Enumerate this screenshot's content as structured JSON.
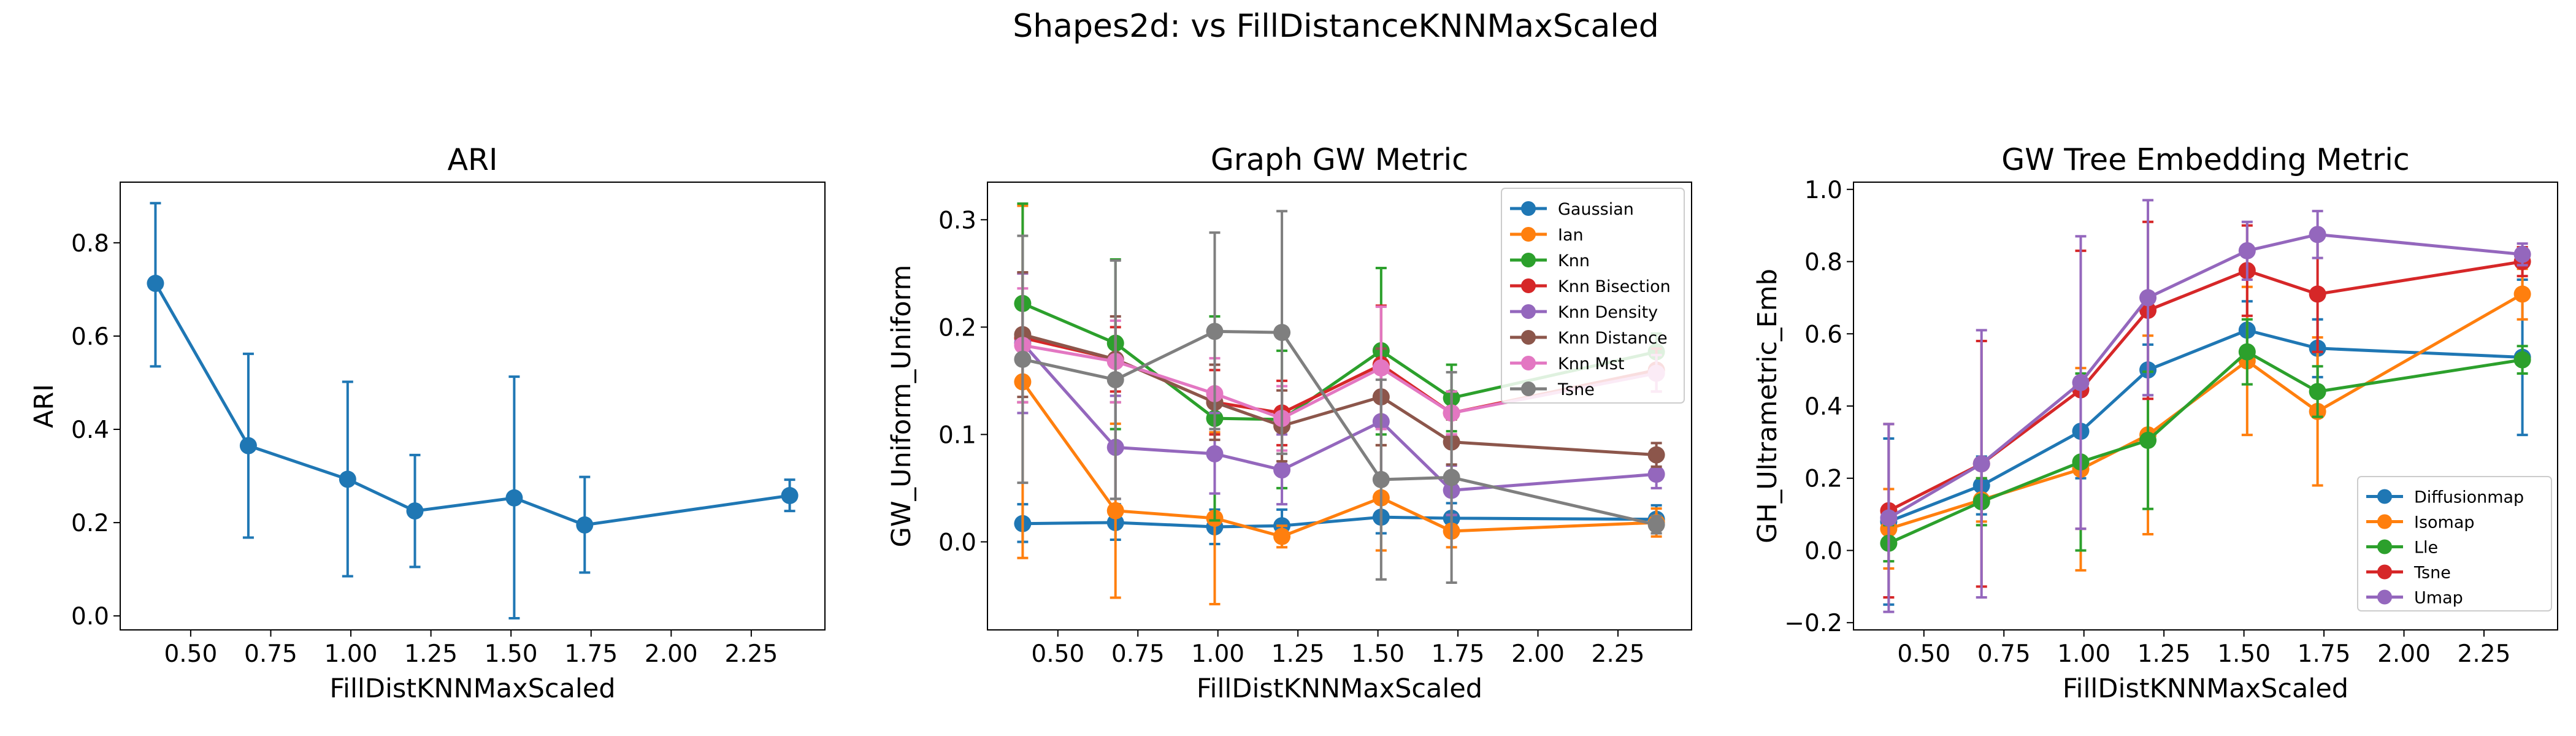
{
  "figure_title": "Shapes2d: vs FillDistanceKNNMaxScaled",
  "chart_data": [
    {
      "type": "line",
      "title": "ARI",
      "xlabel": "FillDistKNNMaxScaled",
      "ylabel": "ARI",
      "xlim": [
        0.28,
        2.48
      ],
      "ylim": [
        -0.03,
        0.93
      ],
      "xticks": [
        0.5,
        0.75,
        1.0,
        1.25,
        1.5,
        1.75,
        2.0,
        2.25
      ],
      "xtick_labels": [
        "0.50",
        "0.75",
        "1.00",
        "1.25",
        "1.50",
        "1.75",
        "2.00",
        "2.25"
      ],
      "yticks": [
        0.0,
        0.2,
        0.4,
        0.6,
        0.8
      ],
      "ytick_labels": [
        "0.0",
        "0.2",
        "0.4",
        "0.6",
        "0.8"
      ],
      "x": [
        0.39,
        0.68,
        0.99,
        1.2,
        1.51,
        1.73,
        2.37
      ],
      "legend": false,
      "series": [
        {
          "name": "",
          "color": "#1f77b4",
          "values": [
            0.713,
            0.365,
            0.293,
            0.225,
            0.253,
            0.195,
            0.258
          ],
          "err_low": [
            0.535,
            0.168,
            0.085,
            0.105,
            -0.005,
            0.093,
            0.225
          ],
          "err_high": [
            0.885,
            0.562,
            0.502,
            0.345,
            0.513,
            0.298,
            0.292
          ]
        }
      ]
    },
    {
      "type": "line",
      "title": "Graph GW Metric",
      "xlabel": "FillDistKNNMaxScaled",
      "ylabel": "GW_Uniform_Uniform",
      "xlim": [
        0.28,
        2.48
      ],
      "ylim": [
        -0.082,
        0.335
      ],
      "xticks": [
        0.5,
        0.75,
        1.0,
        1.25,
        1.5,
        1.75,
        2.0,
        2.25
      ],
      "xtick_labels": [
        "0.50",
        "0.75",
        "1.00",
        "1.25",
        "1.50",
        "1.75",
        "2.00",
        "2.25"
      ],
      "yticks": [
        0.0,
        0.1,
        0.2,
        0.3
      ],
      "ytick_labels": [
        "0.0",
        "0.1",
        "0.2",
        "0.3"
      ],
      "x": [
        0.39,
        0.68,
        0.99,
        1.2,
        1.51,
        1.73,
        2.37
      ],
      "legend": "top-right",
      "series": [
        {
          "name": "Gaussian",
          "color": "#1f77b4",
          "values": [
            0.017,
            0.018,
            0.014,
            0.015,
            0.023,
            0.022,
            0.021
          ],
          "err_low": [
            0.0,
            0.002,
            -0.002,
            0.0,
            0.008,
            0.008,
            0.008
          ],
          "err_high": [
            0.035,
            0.035,
            0.03,
            0.03,
            0.038,
            0.036,
            0.034
          ]
        },
        {
          "name": "Ian",
          "color": "#ff7f0e",
          "values": [
            0.149,
            0.029,
            0.022,
            0.005,
            0.041,
            0.01,
            0.018
          ],
          "err_low": [
            -0.015,
            -0.052,
            -0.058,
            -0.005,
            -0.008,
            -0.005,
            0.005
          ],
          "err_high": [
            0.313,
            0.11,
            0.102,
            0.015,
            0.09,
            0.025,
            0.031
          ]
        },
        {
          "name": "Knn",
          "color": "#2ca02c",
          "values": [
            0.222,
            0.185,
            0.115,
            0.114,
            0.178,
            0.134,
            0.177
          ],
          "err_low": [
            0.13,
            0.105,
            0.02,
            0.05,
            0.1,
            0.103,
            0.16
          ],
          "err_high": [
            0.315,
            0.263,
            0.21,
            0.178,
            0.255,
            0.165,
            0.194
          ]
        },
        {
          "name": "Knn Bisection",
          "color": "#d62728",
          "values": [
            0.19,
            0.17,
            0.13,
            0.12,
            0.165,
            0.12,
            0.16
          ],
          "err_low": [
            0.13,
            0.14,
            0.1,
            0.09,
            0.11,
            0.1,
            0.14
          ],
          "err_high": [
            0.25,
            0.2,
            0.16,
            0.15,
            0.22,
            0.14,
            0.18
          ]
        },
        {
          "name": "Knn Density",
          "color": "#9467bd",
          "values": [
            0.185,
            0.088,
            0.082,
            0.067,
            0.112,
            0.048,
            0.063
          ],
          "err_low": [
            0.12,
            0.04,
            0.045,
            0.035,
            0.06,
            0.025,
            0.05
          ],
          "err_high": [
            0.25,
            0.136,
            0.12,
            0.1,
            0.164,
            0.071,
            0.076
          ]
        },
        {
          "name": "Knn Distance",
          "color": "#8c564b",
          "values": [
            0.193,
            0.17,
            0.13,
            0.108,
            0.135,
            0.093,
            0.081
          ],
          "err_low": [
            0.135,
            0.13,
            0.095,
            0.075,
            0.09,
            0.072,
            0.07
          ],
          "err_high": [
            0.251,
            0.21,
            0.165,
            0.141,
            0.18,
            0.114,
            0.092
          ]
        },
        {
          "name": "Knn Mst",
          "color": "#e377c2",
          "values": [
            0.183,
            0.168,
            0.138,
            0.115,
            0.162,
            0.12,
            0.157
          ],
          "err_low": [
            0.13,
            0.13,
            0.105,
            0.085,
            0.105,
            0.1,
            0.14
          ],
          "err_high": [
            0.236,
            0.206,
            0.171,
            0.145,
            0.219,
            0.14,
            0.174
          ]
        },
        {
          "name": "Tsne",
          "color": "#7f7f7f",
          "values": [
            0.17,
            0.151,
            0.196,
            0.195,
            0.058,
            0.06,
            0.016
          ],
          "err_low": [
            0.055,
            0.04,
            0.105,
            0.082,
            -0.035,
            -0.038,
            0.008
          ],
          "err_high": [
            0.285,
            0.262,
            0.288,
            0.308,
            0.151,
            0.158,
            0.024
          ]
        }
      ]
    },
    {
      "type": "line",
      "title": "GW Tree Embedding Metric",
      "xlabel": "FillDistKNNMaxScaled",
      "ylabel": "GH_Ultrametric_Emb",
      "xlim": [
        0.28,
        2.48
      ],
      "ylim": [
        -0.22,
        1.02
      ],
      "xticks": [
        0.5,
        0.75,
        1.0,
        1.25,
        1.5,
        1.75,
        2.0,
        2.25
      ],
      "xtick_labels": [
        "0.50",
        "0.75",
        "1.00",
        "1.25",
        "1.50",
        "1.75",
        "2.00",
        "2.25"
      ],
      "yticks": [
        -0.2,
        0.0,
        0.2,
        0.4,
        0.6,
        0.8,
        1.0
      ],
      "ytick_labels": [
        "−0.2",
        "0.0",
        "0.2",
        "0.4",
        "0.6",
        "0.8",
        "1.0"
      ],
      "x": [
        0.39,
        0.68,
        0.99,
        1.2,
        1.51,
        1.73,
        2.37
      ],
      "legend": "bottom-right",
      "series": [
        {
          "name": "Diffusionmap",
          "color": "#1f77b4",
          "values": [
            0.08,
            0.18,
            0.33,
            0.5,
            0.61,
            0.56,
            0.535
          ],
          "err_low": [
            -0.15,
            0.1,
            0.2,
            0.43,
            0.53,
            0.48,
            0.32
          ],
          "err_high": [
            0.31,
            0.26,
            0.46,
            0.57,
            0.69,
            0.64,
            0.75
          ]
        },
        {
          "name": "Isomap",
          "color": "#ff7f0e",
          "values": [
            0.06,
            0.14,
            0.225,
            0.32,
            0.525,
            0.385,
            0.71
          ],
          "err_low": [
            -0.05,
            0.08,
            -0.055,
            0.045,
            0.32,
            0.18,
            0.64
          ],
          "err_high": [
            0.17,
            0.2,
            0.505,
            0.595,
            0.73,
            0.59,
            0.78
          ]
        },
        {
          "name": "Lle",
          "color": "#2ca02c",
          "values": [
            0.02,
            0.135,
            0.245,
            0.305,
            0.55,
            0.44,
            0.528
          ],
          "err_low": [
            -0.03,
            0.07,
            0.0,
            0.115,
            0.46,
            0.37,
            0.49
          ],
          "err_high": [
            0.07,
            0.2,
            0.49,
            0.495,
            0.64,
            0.51,
            0.566
          ]
        },
        {
          "name": "Tsne",
          "color": "#d62728",
          "values": [
            0.11,
            0.24,
            0.445,
            0.665,
            0.775,
            0.71,
            0.8
          ],
          "err_low": [
            -0.13,
            -0.1,
            0.06,
            0.42,
            0.65,
            0.55,
            0.76
          ],
          "err_high": [
            0.35,
            0.58,
            0.83,
            0.91,
            0.9,
            0.87,
            0.84
          ]
        },
        {
          "name": "Umap",
          "color": "#9467bd",
          "values": [
            0.09,
            0.24,
            0.465,
            0.7,
            0.83,
            0.875,
            0.82
          ],
          "err_low": [
            -0.17,
            -0.13,
            0.06,
            0.43,
            0.75,
            0.81,
            0.79
          ],
          "err_high": [
            0.35,
            0.61,
            0.87,
            0.97,
            0.91,
            0.94,
            0.85
          ]
        }
      ]
    }
  ]
}
